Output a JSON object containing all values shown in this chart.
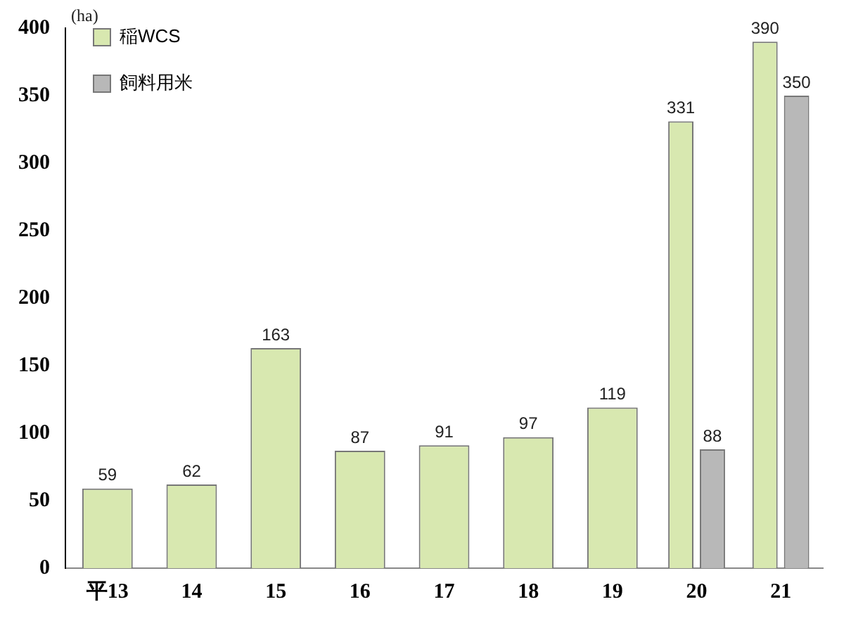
{
  "chart_data": {
    "type": "bar",
    "ylabel": "(ha)",
    "categories": [
      "平13",
      "14",
      "15",
      "16",
      "17",
      "18",
      "19",
      "20",
      "21"
    ],
    "series": [
      {
        "name": "稲WCS",
        "color": "#d8e8b0",
        "values": [
          59,
          62,
          163,
          87,
          91,
          97,
          119,
          331,
          390
        ]
      },
      {
        "name": "飼料用米",
        "color": "#b8b8b8",
        "values": [
          null,
          null,
          null,
          null,
          null,
          null,
          null,
          88,
          350
        ]
      }
    ],
    "ylim": [
      0,
      400
    ],
    "yticks": [
      0,
      50,
      100,
      150,
      200,
      250,
      300,
      350,
      400
    ],
    "grid": false,
    "legend": "top left",
    "data_labels": true
  }
}
